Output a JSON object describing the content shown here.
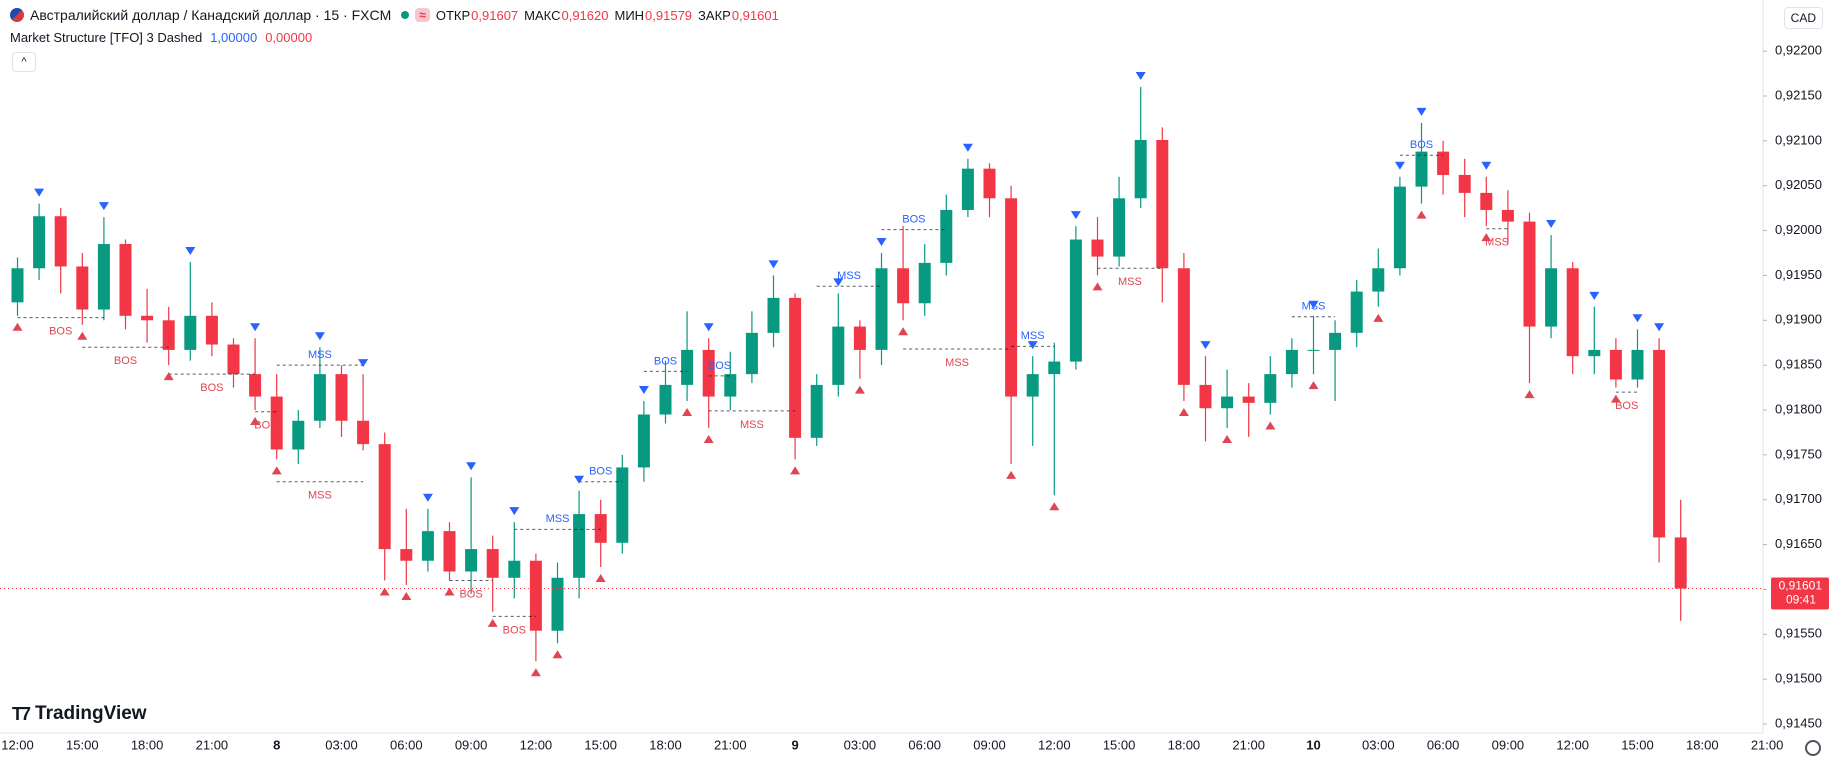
{
  "chart_data": {
    "type": "candlestick",
    "title": "Австралийский доллар / Канадский доллар · 15 · FXCM",
    "ohlc_labels": [
      "ОТКР",
      "МАКС",
      "МИН",
      "ЗАКР"
    ],
    "ohlc_values": [
      {
        "value": 0.91607,
        "label": "0,91607"
      },
      {
        "value": 0.9162,
        "label": "0,91620"
      },
      {
        "value": 0.91579,
        "label": "0,91579"
      },
      {
        "value": 0.91601,
        "label": "0,91601"
      }
    ],
    "indicator": {
      "name": "Market Structure [TFO] 3 Dashed",
      "values": [
        {
          "value": 1,
          "label": "1,00000"
        },
        {
          "value": 0,
          "label": "0,00000"
        }
      ]
    },
    "currency": "CAD",
    "brand": "TradingView",
    "last_price": {
      "value": 0.91601,
      "label": "0,91601"
    },
    "countdown": "09:41",
    "up_color": "#089981",
    "down_color": "#f23645",
    "grid": false,
    "categories": [
      "12:00",
      null,
      null,
      "15:00",
      null,
      null,
      "18:00",
      null,
      null,
      "21:00",
      null,
      null,
      "8",
      null,
      null,
      "03:00",
      null,
      null,
      "06:00",
      null,
      null,
      "09:00",
      null,
      null,
      "12:00",
      null,
      null,
      "15:00",
      null,
      null,
      "18:00",
      null,
      null,
      "21:00",
      null,
      null,
      "9",
      null,
      null,
      "03:00",
      null,
      null,
      "06:00",
      null,
      null,
      "09:00",
      null,
      null,
      "12:00",
      null,
      null,
      "15:00",
      null,
      null,
      "18:00",
      null,
      null,
      "21:00",
      null,
      null,
      "10",
      null,
      null,
      "03:00",
      null,
      null,
      "06:00",
      null,
      null,
      "09:00",
      null,
      null,
      "12:00",
      null,
      null,
      "15:00",
      null,
      null,
      "18:00",
      null,
      null,
      "21:00"
    ],
    "candles": [
      [
        0.9192,
        0.9197,
        0.91905,
        0.91958
      ],
      [
        0.91958,
        0.9203,
        0.91945,
        0.92016
      ],
      [
        0.92016,
        0.92025,
        0.9193,
        0.9196
      ],
      [
        0.9196,
        0.91975,
        0.91895,
        0.91912
      ],
      [
        0.91912,
        0.92015,
        0.919,
        0.91985
      ],
      [
        0.91985,
        0.9199,
        0.9189,
        0.91905
      ],
      [
        0.91905,
        0.91935,
        0.91875,
        0.919
      ],
      [
        0.919,
        0.91915,
        0.9185,
        0.91867
      ],
      [
        0.91867,
        0.91965,
        0.91855,
        0.91905
      ],
      [
        0.91905,
        0.9192,
        0.9186,
        0.91873
      ],
      [
        0.91873,
        0.9188,
        0.91825,
        0.9184
      ],
      [
        0.9184,
        0.9188,
        0.918,
        0.91815
      ],
      [
        0.91815,
        0.9184,
        0.91745,
        0.91756
      ],
      [
        0.91756,
        0.918,
        0.9174,
        0.91788
      ],
      [
        0.91788,
        0.9187,
        0.9178,
        0.9184
      ],
      [
        0.9184,
        0.9185,
        0.9177,
        0.91788
      ],
      [
        0.91788,
        0.9184,
        0.91755,
        0.91762
      ],
      [
        0.91762,
        0.91775,
        0.9161,
        0.91645
      ],
      [
        0.91645,
        0.9169,
        0.91605,
        0.91632
      ],
      [
        0.91632,
        0.9169,
        0.9162,
        0.91665
      ],
      [
        0.91665,
        0.91675,
        0.9161,
        0.9162
      ],
      [
        0.9162,
        0.91725,
        0.91595,
        0.91645
      ],
      [
        0.91645,
        0.9166,
        0.91575,
        0.91613
      ],
      [
        0.91613,
        0.91675,
        0.9159,
        0.91632
      ],
      [
        0.91632,
        0.9164,
        0.9152,
        0.91554
      ],
      [
        0.91554,
        0.9163,
        0.9154,
        0.91613
      ],
      [
        0.91613,
        0.9171,
        0.9159,
        0.91684
      ],
      [
        0.91684,
        0.917,
        0.91625,
        0.91652
      ],
      [
        0.91652,
        0.9175,
        0.9164,
        0.91736
      ],
      [
        0.91736,
        0.9181,
        0.9172,
        0.91795
      ],
      [
        0.91795,
        0.91855,
        0.91785,
        0.91828
      ],
      [
        0.91828,
        0.9191,
        0.9181,
        0.91867
      ],
      [
        0.91867,
        0.9188,
        0.9178,
        0.91815
      ],
      [
        0.91815,
        0.91865,
        0.918,
        0.9184
      ],
      [
        0.9184,
        0.9191,
        0.9183,
        0.91886
      ],
      [
        0.91886,
        0.9195,
        0.9187,
        0.91925
      ],
      [
        0.91925,
        0.9193,
        0.91745,
        0.91769
      ],
      [
        0.91769,
        0.9184,
        0.9176,
        0.91828
      ],
      [
        0.91828,
        0.9193,
        0.91815,
        0.91893
      ],
      [
        0.91893,
        0.919,
        0.91835,
        0.91867
      ],
      [
        0.91867,
        0.91975,
        0.9185,
        0.91958
      ],
      [
        0.91958,
        0.92005,
        0.919,
        0.91919
      ],
      [
        0.91919,
        0.91985,
        0.91905,
        0.91964
      ],
      [
        0.91964,
        0.9204,
        0.9195,
        0.92023
      ],
      [
        0.92023,
        0.9208,
        0.92015,
        0.92069
      ],
      [
        0.92069,
        0.92075,
        0.92015,
        0.92036
      ],
      [
        0.92036,
        0.9205,
        0.9174,
        0.91815
      ],
      [
        0.91815,
        0.9186,
        0.9176,
        0.9184
      ],
      [
        0.9184,
        0.91875,
        0.91705,
        0.91854
      ],
      [
        0.91854,
        0.92005,
        0.91845,
        0.9199
      ],
      [
        0.9199,
        0.92015,
        0.9195,
        0.91971
      ],
      [
        0.91971,
        0.9206,
        0.9196,
        0.92036
      ],
      [
        0.92036,
        0.9216,
        0.92025,
        0.92101
      ],
      [
        0.92101,
        0.92115,
        0.9192,
        0.91958
      ],
      [
        0.91958,
        0.91975,
        0.9181,
        0.91828
      ],
      [
        0.91828,
        0.9186,
        0.91765,
        0.91802
      ],
      [
        0.91802,
        0.91845,
        0.9178,
        0.91815
      ],
      [
        0.91815,
        0.9183,
        0.9177,
        0.91808
      ],
      [
        0.91808,
        0.9186,
        0.91795,
        0.9184
      ],
      [
        0.9184,
        0.9188,
        0.91825,
        0.91867
      ],
      [
        0.91867,
        0.91905,
        0.9184,
        0.91867
      ],
      [
        0.91867,
        0.919,
        0.9181,
        0.91886
      ],
      [
        0.91886,
        0.91945,
        0.9187,
        0.91932
      ],
      [
        0.91932,
        0.9198,
        0.91915,
        0.91958
      ],
      [
        0.91958,
        0.9206,
        0.9195,
        0.92049
      ],
      [
        0.92049,
        0.9212,
        0.9203,
        0.92088
      ],
      [
        0.92088,
        0.921,
        0.9204,
        0.92062
      ],
      [
        0.92062,
        0.9208,
        0.92015,
        0.92042
      ],
      [
        0.92042,
        0.9206,
        0.92005,
        0.92023
      ],
      [
        0.92023,
        0.92045,
        0.91985,
        0.9201
      ],
      [
        0.9201,
        0.9202,
        0.9183,
        0.91893
      ],
      [
        0.91893,
        0.91995,
        0.9188,
        0.91958
      ],
      [
        0.91958,
        0.91965,
        0.9184,
        0.9186
      ],
      [
        0.9186,
        0.91915,
        0.9184,
        0.91867
      ],
      [
        0.91867,
        0.9188,
        0.91825,
        0.91834
      ],
      [
        0.91834,
        0.9189,
        0.91825,
        0.91867
      ],
      [
        0.91867,
        0.9188,
        0.9163,
        0.91658
      ],
      [
        0.91658,
        0.917,
        0.91565,
        0.91601
      ],
      null,
      null,
      null,
      null
    ],
    "swing_highs": [
      1,
      4,
      8,
      11,
      14,
      16,
      19,
      21,
      23,
      26,
      29,
      32,
      35,
      38,
      40,
      44,
      47,
      49,
      52,
      55,
      60,
      64,
      65,
      68,
      71,
      73,
      75,
      76
    ],
    "swing_lows": [
      0,
      3,
      7,
      11,
      12,
      17,
      18,
      20,
      22,
      24,
      25,
      27,
      31,
      32,
      36,
      39,
      41,
      46,
      48,
      50,
      54,
      56,
      58,
      60,
      63,
      65,
      68,
      70,
      74
    ],
    "high_color": "#2962ff",
    "low_color": "#e04553",
    "structures": [
      {
        "label": "BOS",
        "price": 0.91903,
        "from": 0,
        "to": 4,
        "side": "low"
      },
      {
        "label": "BOS",
        "price": 0.9187,
        "from": 3,
        "to": 7,
        "side": "low"
      },
      {
        "label": "BOS",
        "price": 0.9184,
        "from": 7,
        "to": 11,
        "side": "low"
      },
      {
        "label": "BOS",
        "price": 0.91798,
        "from": 11,
        "to": 12,
        "side": "low"
      },
      {
        "label": "MSS",
        "price": 0.9185,
        "from": 12,
        "to": 16,
        "side": "high"
      },
      {
        "label": "MSS",
        "price": 0.9172,
        "from": 12,
        "to": 16,
        "side": "low"
      },
      {
        "label": "BOS",
        "price": 0.9161,
        "from": 20,
        "to": 22,
        "side": "low"
      },
      {
        "label": "BOS",
        "price": 0.9157,
        "from": 22,
        "to": 24,
        "side": "low"
      },
      {
        "label": "MSS",
        "price": 0.91667,
        "from": 23,
        "to": 27,
        "side": "high"
      },
      {
        "label": "BOS",
        "price": 0.9172,
        "from": 26,
        "to": 28,
        "side": "high"
      },
      {
        "label": "BOS",
        "price": 0.91843,
        "from": 29,
        "to": 31,
        "side": "high"
      },
      {
        "label": "BOS",
        "price": 0.91838,
        "from": 32,
        "to": 33,
        "side": "high"
      },
      {
        "label": "MSS",
        "price": 0.91799,
        "from": 32,
        "to": 36,
        "side": "low"
      },
      {
        "label": "MSS",
        "price": 0.91938,
        "from": 37,
        "to": 40,
        "side": "high"
      },
      {
        "label": "BOS",
        "price": 0.92001,
        "from": 40,
        "to": 43,
        "side": "high"
      },
      {
        "label": "MSS",
        "price": 0.91868,
        "from": 41,
        "to": 46,
        "side": "low"
      },
      {
        "label": "MSS",
        "price": 0.91871,
        "from": 46,
        "to": 48,
        "side": "high"
      },
      {
        "label": "MSS",
        "price": 0.91958,
        "from": 50,
        "to": 53,
        "side": "low"
      },
      {
        "label": "MSS",
        "price": 0.91904,
        "from": 59,
        "to": 61,
        "side": "high"
      },
      {
        "label": "BOS",
        "price": 0.92084,
        "from": 64,
        "to": 66,
        "side": "high"
      },
      {
        "label": "MSS",
        "price": 0.92002,
        "from": 68,
        "to": 69,
        "side": "low"
      },
      {
        "label": "BOS",
        "price": 0.9182,
        "from": 74,
        "to": 75,
        "side": "low"
      }
    ],
    "ylim": [
      0.9144,
      0.92257
    ],
    "yticks": [
      {
        "value": 0.9145,
        "label": "0,91450"
      },
      {
        "value": 0.915,
        "label": "0,91500"
      },
      {
        "value": 0.9155,
        "label": "0,91550"
      },
      {
        "value": 0.916,
        "label": "0,91600"
      },
      {
        "value": 0.9165,
        "label": "0,91650"
      },
      {
        "value": 0.917,
        "label": "0,91700"
      },
      {
        "value": 0.9175,
        "label": "0,91750"
      },
      {
        "value": 0.918,
        "label": "0,91800"
      },
      {
        "value": 0.9185,
        "label": "0,91850"
      },
      {
        "value": 0.919,
        "label": "0,91900"
      },
      {
        "value": 0.9195,
        "label": "0,91950"
      },
      {
        "value": 0.92,
        "label": "0,92000"
      },
      {
        "value": 0.9205,
        "label": "0,92050"
      },
      {
        "value": 0.921,
        "label": "0,92100"
      },
      {
        "value": 0.9215,
        "label": "0,92150"
      },
      {
        "value": 0.922,
        "label": "0,92200"
      }
    ]
  }
}
